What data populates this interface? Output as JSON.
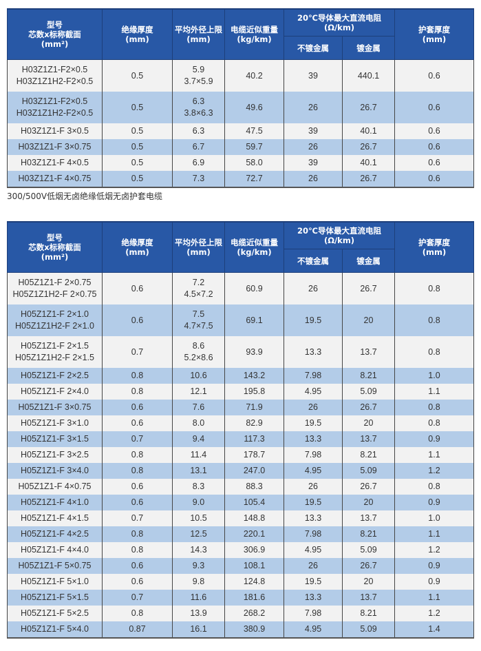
{
  "header": {
    "model": [
      "型号",
      "芯数x标称截面",
      "(mm²)"
    ],
    "insulation": [
      "绝缘厚度",
      "(mm)"
    ],
    "diameter": [
      "平均外径上限",
      "(mm)"
    ],
    "weight": [
      "电缆近似重量",
      "(kg/km)"
    ],
    "resistance": [
      "20℃导体最大直流电阻",
      "(Ω/km)"
    ],
    "plain": "不镀金属",
    "plated": "镀金属",
    "sheath": [
      "护套厚度",
      "(mm)"
    ]
  },
  "colors": {
    "header_bg": "#2858a6",
    "row_alt": "#b3cce8",
    "row_base": "#f2f2f2"
  },
  "table1": [
    {
      "model": [
        "H03Z1Z1-F2×0.5",
        "H03Z1Z1H2-F2×0.5"
      ],
      "ins": "0.5",
      "dia": [
        "5.9",
        "3.7×5.9"
      ],
      "wt": "40.2",
      "r1": "39",
      "r2": "440.1",
      "sh": "0.6"
    },
    {
      "model": [
        "H03Z1Z1-F2×0.5",
        "H03Z1Z1H2-F2×0.5"
      ],
      "ins": "0.5",
      "dia": [
        "6.3",
        "3.8×6.3"
      ],
      "wt": "49.6",
      "r1": "26",
      "r2": "26.7",
      "sh": "0.6"
    },
    {
      "model": [
        "H03Z1Z1-F 3×0.5"
      ],
      "ins": "0.5",
      "dia": [
        "6.3"
      ],
      "wt": "47.5",
      "r1": "39",
      "r2": "40.1",
      "sh": "0.6"
    },
    {
      "model": [
        "H03Z1Z1-F 3×0.75"
      ],
      "ins": "0.5",
      "dia": [
        "6.7"
      ],
      "wt": "59.7",
      "r1": "26",
      "r2": "26.7",
      "sh": "0.6"
    },
    {
      "model": [
        "H03Z1Z1-F 4×0.5"
      ],
      "ins": "0.5",
      "dia": [
        "6.9"
      ],
      "wt": "58.0",
      "r1": "39",
      "r2": "40.1",
      "sh": "0.6"
    },
    {
      "model": [
        "H03Z1Z1-F 4×0.75"
      ],
      "ins": "0.5",
      "dia": [
        "7.3"
      ],
      "wt": "72.7",
      "r1": "26",
      "r2": "26.7",
      "sh": "0.6"
    }
  ],
  "caption": "300/500V低烟无卤绝缘低烟无卤护套电缆",
  "table2": [
    {
      "model": [
        "H05Z1Z1-F 2×0.75",
        "H05Z1Z1H2-F 2×0.75"
      ],
      "ins": "0.6",
      "dia": [
        "7.2",
        "4.5×7.2"
      ],
      "wt": "60.9",
      "r1": "26",
      "r2": "26.7",
      "sh": "0.8"
    },
    {
      "model": [
        "H05Z1Z1-F 2×1.0",
        "H05Z1Z1H2-F 2×1.0"
      ],
      "ins": "0.6",
      "dia": [
        "7.5",
        "4.7×7.5"
      ],
      "wt": "69.1",
      "r1": "19.5",
      "r2": "20",
      "sh": "0.8"
    },
    {
      "model": [
        "H05Z1Z1-F 2×1.5",
        "H05Z1Z1H2-F 2×1.5"
      ],
      "ins": "0.7",
      "dia": [
        "8.6",
        "5.2×8.6"
      ],
      "wt": "93.9",
      "r1": "13.3",
      "r2": "13.7",
      "sh": "0.8"
    },
    {
      "model": [
        "H05Z1Z1-F 2×2.5"
      ],
      "ins": "0.8",
      "dia": [
        "10.6"
      ],
      "wt": "143.2",
      "r1": "7.98",
      "r2": "8.21",
      "sh": "1.0"
    },
    {
      "model": [
        "H05Z1Z1-F 2×4.0"
      ],
      "ins": "0.8",
      "dia": [
        "12.1"
      ],
      "wt": "195.8",
      "r1": "4.95",
      "r2": "5.09",
      "sh": "1.1"
    },
    {
      "model": [
        "H05Z1Z1-F 3×0.75"
      ],
      "ins": "0.6",
      "dia": [
        "7.6"
      ],
      "wt": "71.9",
      "r1": "26",
      "r2": "26.7",
      "sh": "0.8"
    },
    {
      "model": [
        "H05Z1Z1-F 3×1.0"
      ],
      "ins": "0.6",
      "dia": [
        "8.0"
      ],
      "wt": "82.9",
      "r1": "19.5",
      "r2": "20",
      "sh": "0.8"
    },
    {
      "model": [
        "H05Z1Z1-F 3×1.5"
      ],
      "ins": "0.7",
      "dia": [
        "9.4"
      ],
      "wt": "117.3",
      "r1": "13.3",
      "r2": "13.7",
      "sh": "0.9"
    },
    {
      "model": [
        "H05Z1Z1-F 3×2.5"
      ],
      "ins": "0.8",
      "dia": [
        "11.4"
      ],
      "wt": "178.7",
      "r1": "7.98",
      "r2": "8.21",
      "sh": "1.1"
    },
    {
      "model": [
        "H05Z1Z1-F 3×4.0"
      ],
      "ins": "0.8",
      "dia": [
        "13.1"
      ],
      "wt": "247.0",
      "r1": "4.95",
      "r2": "5.09",
      "sh": "1.2"
    },
    {
      "model": [
        "H05Z1Z1-F 4×0.75"
      ],
      "ins": "0.6",
      "dia": [
        "8.3"
      ],
      "wt": "88.3",
      "r1": "26",
      "r2": "26.7",
      "sh": "0.8"
    },
    {
      "model": [
        "H05Z1Z1-F 4×1.0"
      ],
      "ins": "0.6",
      "dia": [
        "9.0"
      ],
      "wt": "105.4",
      "r1": "19.5",
      "r2": "20",
      "sh": "0.9"
    },
    {
      "model": [
        "H05Z1Z1-F 4×1.5"
      ],
      "ins": "0.7",
      "dia": [
        "10.5"
      ],
      "wt": "148.8",
      "r1": "13.3",
      "r2": "13.7",
      "sh": "1.0"
    },
    {
      "model": [
        "H05Z1Z1-F 4×2.5"
      ],
      "ins": "0.8",
      "dia": [
        "12.5"
      ],
      "wt": "220.1",
      "r1": "7.98",
      "r2": "8.21",
      "sh": "1.1"
    },
    {
      "model": [
        "H05Z1Z1-F 4×4.0"
      ],
      "ins": "0.8",
      "dia": [
        "14.3"
      ],
      "wt": "306.9",
      "r1": "4.95",
      "r2": "5.09",
      "sh": "1.2"
    },
    {
      "model": [
        "H05Z1Z1-F 5×0.75"
      ],
      "ins": "0.6",
      "dia": [
        "9.3"
      ],
      "wt": "108.1",
      "r1": "26",
      "r2": "26.7",
      "sh": "0.9"
    },
    {
      "model": [
        "H05Z1Z1-F 5×1.0"
      ],
      "ins": "0.6",
      "dia": [
        "9.8"
      ],
      "wt": "124.8",
      "r1": "19.5",
      "r2": "20",
      "sh": "0.9"
    },
    {
      "model": [
        "H05Z1Z1-F 5×1.5"
      ],
      "ins": "0.7",
      "dia": [
        "11.6"
      ],
      "wt": "181.6",
      "r1": "13.3",
      "r2": "13.7",
      "sh": "1.1"
    },
    {
      "model": [
        "H05Z1Z1-F 5×2.5"
      ],
      "ins": "0.8",
      "dia": [
        "13.9"
      ],
      "wt": "268.2",
      "r1": "7.98",
      "r2": "8.21",
      "sh": "1.2"
    },
    {
      "model": [
        "H05Z1Z1-F 5×4.0"
      ],
      "ins": "0.87",
      "dia": [
        "16.1"
      ],
      "wt": "380.9",
      "r1": "4.95",
      "r2": "5.09",
      "sh": "1.4"
    }
  ]
}
